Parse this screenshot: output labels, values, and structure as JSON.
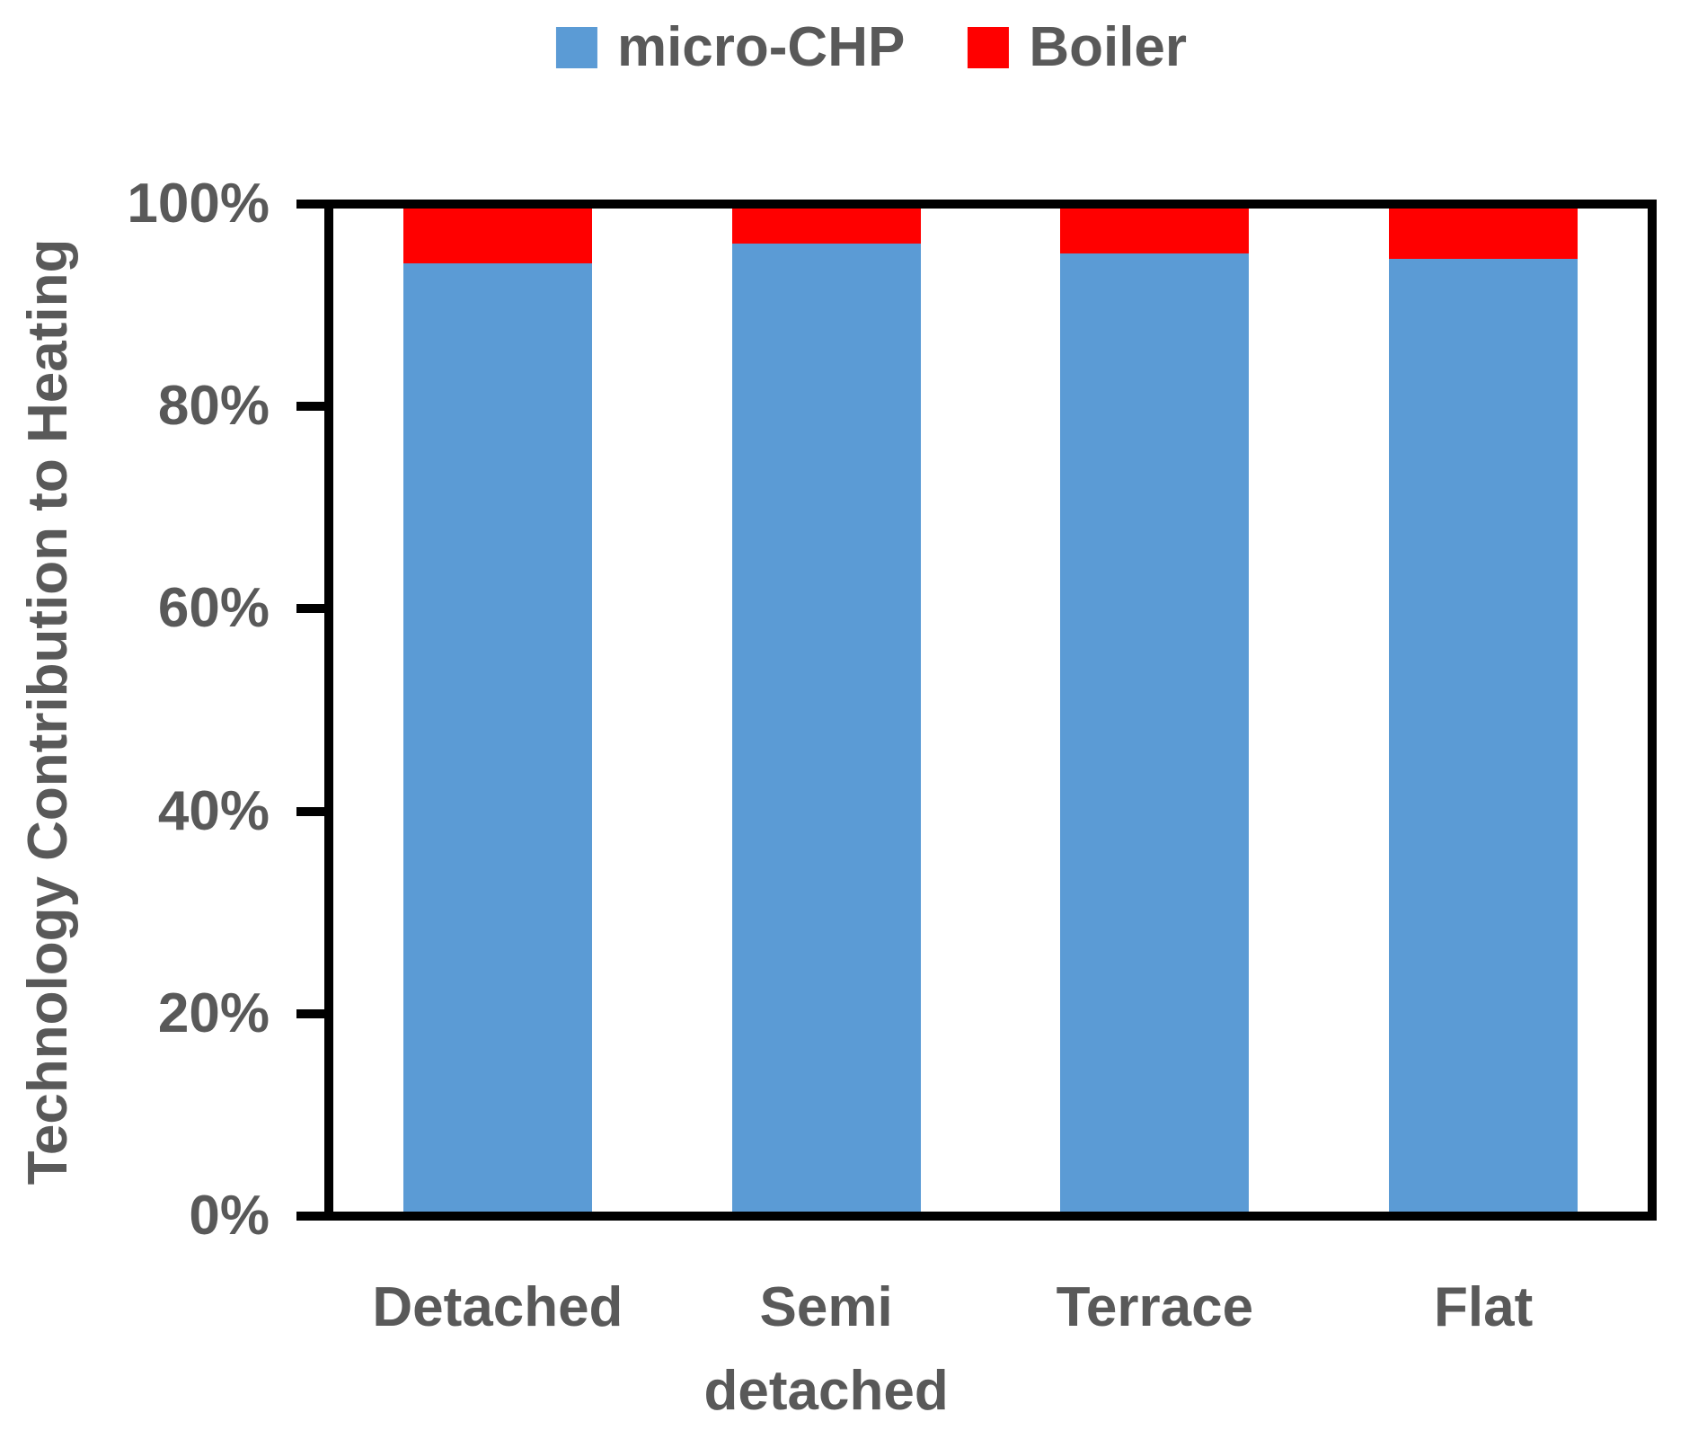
{
  "chart_data": {
    "type": "bar",
    "stacked": true,
    "units": "percent",
    "title": "",
    "xlabel": "",
    "ylabel": "Technology Contribution to Heating",
    "ylim": [
      0,
      100
    ],
    "y_ticks": [
      "0%",
      "20%",
      "40%",
      "60%",
      "80%",
      "100%"
    ],
    "y_tick_values": [
      0,
      20,
      40,
      60,
      80,
      100
    ],
    "grid": false,
    "legend_position": "top",
    "categories": [
      "Detached",
      "Semi detached",
      "Terrace",
      "Flat"
    ],
    "series": [
      {
        "name": "micro-CHP",
        "color": "#5B9BD5",
        "values": [
          94.5,
          96.5,
          95.5,
          95
        ]
      },
      {
        "name": "Boiler",
        "color": "#FF0000",
        "values": [
          5.5,
          3.5,
          4.5,
          5
        ]
      }
    ]
  },
  "colors": {
    "axis": "#000000",
    "label_text": "#595959",
    "background": "#FFFFFF"
  }
}
